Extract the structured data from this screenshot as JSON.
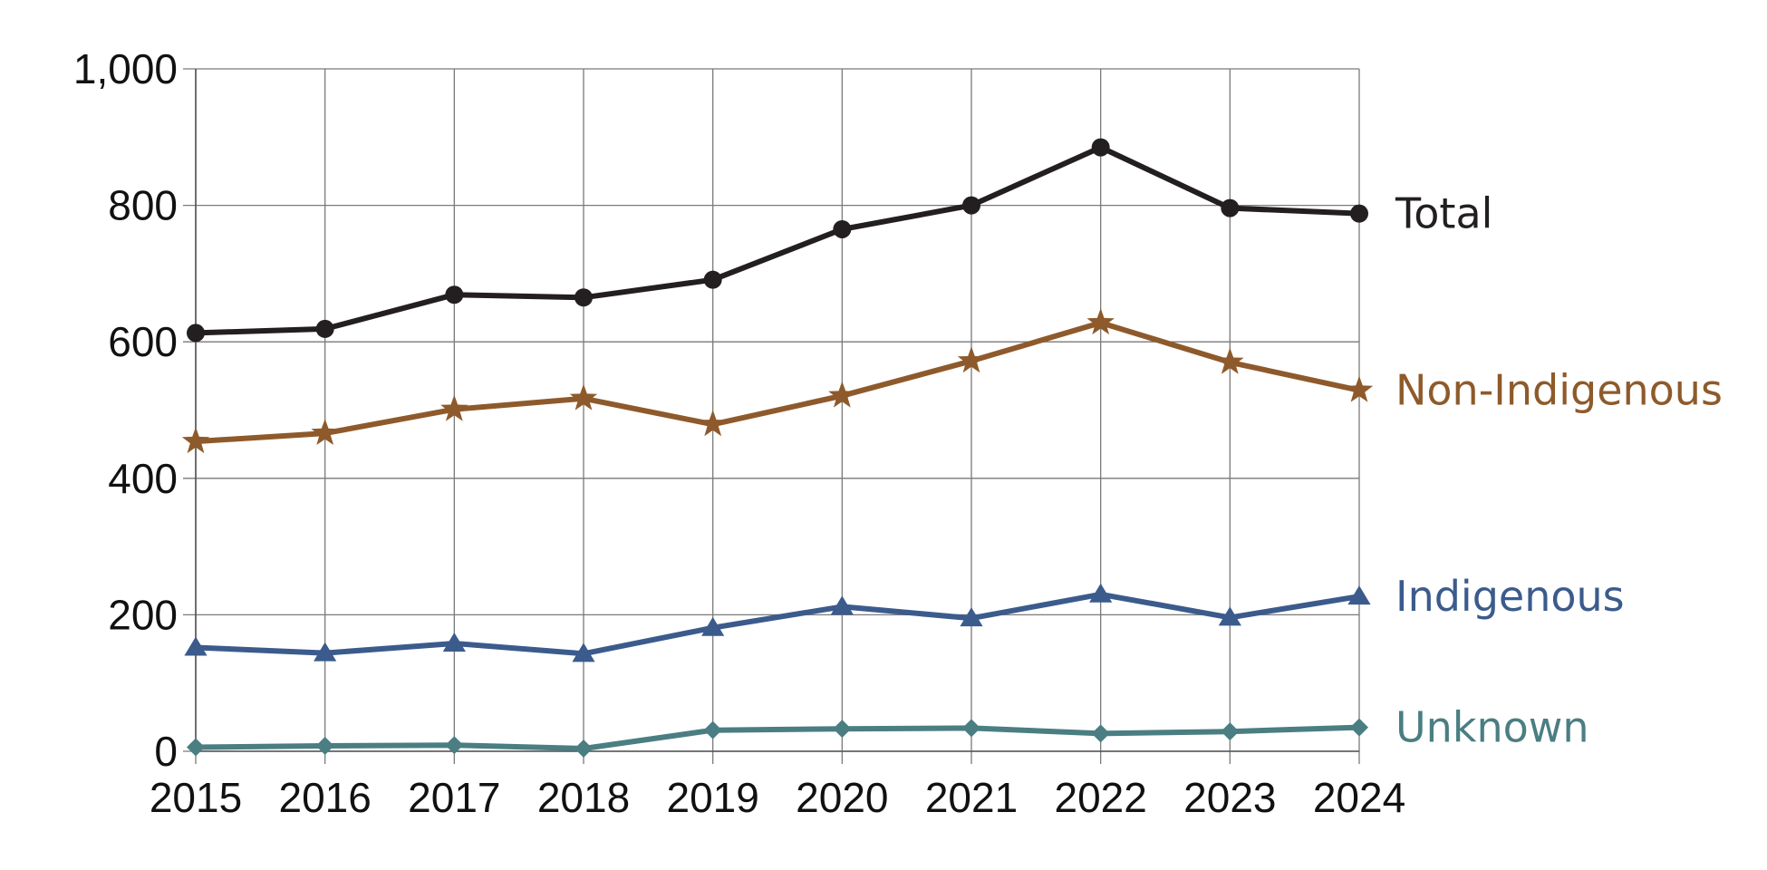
{
  "chart_data": {
    "type": "line",
    "title": "",
    "xlabel": "",
    "ylabel": "",
    "categories": [
      "2015",
      "2016",
      "2017",
      "2018",
      "2019",
      "2020",
      "2021",
      "2022",
      "2023",
      "2024"
    ],
    "ylim": [
      0,
      1000
    ],
    "yticks": [
      0,
      200,
      400,
      600,
      800,
      1000
    ],
    "ytick_labels": [
      "0",
      "200",
      "400",
      "600",
      "800",
      "1,000"
    ],
    "grid": true,
    "legend": "inline labels at right end of each line",
    "series": [
      {
        "name": "Total",
        "color": "#231f20",
        "marker": "circle",
        "values": [
          613,
          619,
          669,
          665,
          691,
          765,
          800,
          885,
          796,
          788
        ]
      },
      {
        "name": "Non-Indigenous",
        "color": "#8e5a2b",
        "marker": "star",
        "values": [
          454,
          466,
          501,
          517,
          479,
          521,
          572,
          628,
          570,
          529
        ]
      },
      {
        "name": "Indigenous",
        "color": "#3b5b8c",
        "marker": "triangle",
        "values": [
          152,
          144,
          158,
          143,
          181,
          212,
          195,
          230,
          196,
          227
        ]
      },
      {
        "name": "Unknown",
        "color": "#4a7e82",
        "marker": "diamond",
        "values": [
          6,
          8,
          9,
          4,
          31,
          33,
          34,
          26,
          29,
          35
        ]
      }
    ]
  }
}
